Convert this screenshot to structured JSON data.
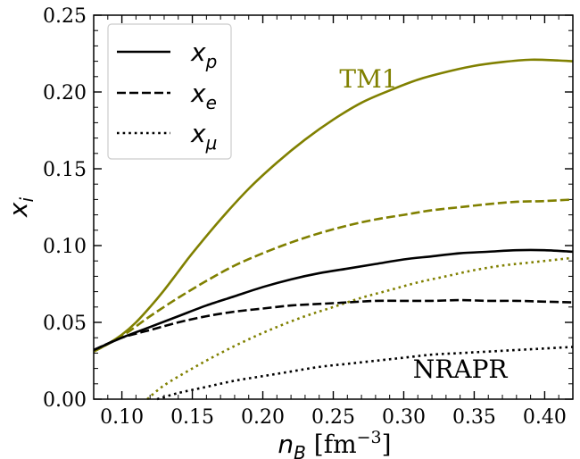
{
  "chart_data": {
    "type": "line",
    "title": "",
    "xlabel": "n_B [fm^-3]",
    "xlabel_parts": {
      "main": "n",
      "sub": "B",
      "unit_pre": " [fm",
      "unit_sup": "−3",
      "unit_post": "]"
    },
    "ylabel": "x_i",
    "ylabel_parts": {
      "main": "x",
      "sub": "i"
    },
    "xlim": [
      0.08,
      0.42
    ],
    "ylim": [
      0.0,
      0.25
    ],
    "xticks": [
      0.1,
      0.15,
      0.2,
      0.25,
      0.3,
      0.35,
      0.4
    ],
    "xtick_labels": [
      "0.10",
      "0.15",
      "0.20",
      "0.25",
      "0.30",
      "0.35",
      "0.40"
    ],
    "yticks": [
      0.0,
      0.05,
      0.1,
      0.15,
      0.2,
      0.25
    ],
    "ytick_labels": [
      "0.00",
      "0.05",
      "0.10",
      "0.15",
      "0.20",
      "0.25"
    ],
    "grid": false,
    "legend": {
      "placement": "top-left",
      "entries": [
        {
          "label": "x",
          "sub": "p",
          "style": "solid"
        },
        {
          "label": "x",
          "sub": "e",
          "style": "dashed"
        },
        {
          "label": "x",
          "sub": "μ",
          "style": "dotted"
        }
      ]
    },
    "annotations": [
      {
        "text": "TM1",
        "x": 0.275,
        "y": 0.203,
        "color": "#808000"
      },
      {
        "text": "NRAPR",
        "x": 0.34,
        "y": 0.014,
        "color": "#000000"
      }
    ],
    "series": [
      {
        "model": "TM1",
        "quantity": "x_p",
        "style": "solid",
        "color": "#808000",
        "x": [
          0.08,
          0.09,
          0.1,
          0.11,
          0.12,
          0.13,
          0.14,
          0.15,
          0.17,
          0.19,
          0.21,
          0.23,
          0.25,
          0.27,
          0.29,
          0.31,
          0.33,
          0.35,
          0.37,
          0.39,
          0.41,
          0.42
        ],
        "y": [
          0.031,
          0.036,
          0.042,
          0.05,
          0.06,
          0.071,
          0.083,
          0.095,
          0.117,
          0.137,
          0.154,
          0.169,
          0.182,
          0.193,
          0.201,
          0.208,
          0.213,
          0.217,
          0.2195,
          0.221,
          0.2205,
          0.22
        ]
      },
      {
        "model": "TM1",
        "quantity": "x_e",
        "style": "dashed",
        "color": "#808000",
        "x": [
          0.08,
          0.1,
          0.12,
          0.14,
          0.16,
          0.18,
          0.2,
          0.22,
          0.24,
          0.26,
          0.28,
          0.3,
          0.32,
          0.34,
          0.36,
          0.38,
          0.4,
          0.42
        ],
        "y": [
          0.031,
          0.041,
          0.054,
          0.066,
          0.077,
          0.087,
          0.095,
          0.102,
          0.108,
          0.113,
          0.117,
          0.12,
          0.123,
          0.125,
          0.127,
          0.1285,
          0.129,
          0.13
        ]
      },
      {
        "model": "TM1",
        "quantity": "x_mu",
        "style": "dotted",
        "color": "#808000",
        "x": [
          0.118,
          0.13,
          0.15,
          0.17,
          0.19,
          0.21,
          0.23,
          0.25,
          0.27,
          0.29,
          0.31,
          0.33,
          0.35,
          0.37,
          0.39,
          0.42
        ],
        "y": [
          0.0,
          0.009,
          0.02,
          0.03,
          0.039,
          0.047,
          0.054,
          0.06,
          0.066,
          0.071,
          0.076,
          0.08,
          0.084,
          0.087,
          0.089,
          0.092
        ]
      },
      {
        "model": "NRAPR",
        "quantity": "x_p",
        "style": "solid",
        "color": "#000000",
        "x": [
          0.08,
          0.1,
          0.12,
          0.14,
          0.16,
          0.18,
          0.2,
          0.22,
          0.24,
          0.26,
          0.28,
          0.3,
          0.32,
          0.34,
          0.36,
          0.38,
          0.4,
          0.42
        ],
        "y": [
          0.032,
          0.04,
          0.047,
          0.054,
          0.061,
          0.067,
          0.073,
          0.078,
          0.082,
          0.085,
          0.088,
          0.091,
          0.093,
          0.095,
          0.096,
          0.097,
          0.097,
          0.096
        ]
      },
      {
        "model": "NRAPR",
        "quantity": "x_e",
        "style": "dashed",
        "color": "#000000",
        "x": [
          0.08,
          0.1,
          0.12,
          0.14,
          0.16,
          0.18,
          0.2,
          0.22,
          0.24,
          0.26,
          0.28,
          0.3,
          0.32,
          0.34,
          0.36,
          0.38,
          0.4,
          0.42
        ],
        "y": [
          0.032,
          0.04,
          0.045,
          0.05,
          0.054,
          0.057,
          0.059,
          0.061,
          0.062,
          0.063,
          0.064,
          0.064,
          0.064,
          0.0645,
          0.064,
          0.064,
          0.0635,
          0.063
        ]
      },
      {
        "model": "NRAPR",
        "quantity": "x_mu",
        "style": "dotted",
        "color": "#000000",
        "x": [
          0.125,
          0.14,
          0.16,
          0.18,
          0.2,
          0.22,
          0.24,
          0.26,
          0.28,
          0.3,
          0.32,
          0.34,
          0.36,
          0.38,
          0.4,
          0.42
        ],
        "y": [
          0.0,
          0.004,
          0.008,
          0.012,
          0.015,
          0.018,
          0.021,
          0.023,
          0.025,
          0.027,
          0.029,
          0.03,
          0.031,
          0.032,
          0.033,
          0.034
        ]
      }
    ]
  }
}
